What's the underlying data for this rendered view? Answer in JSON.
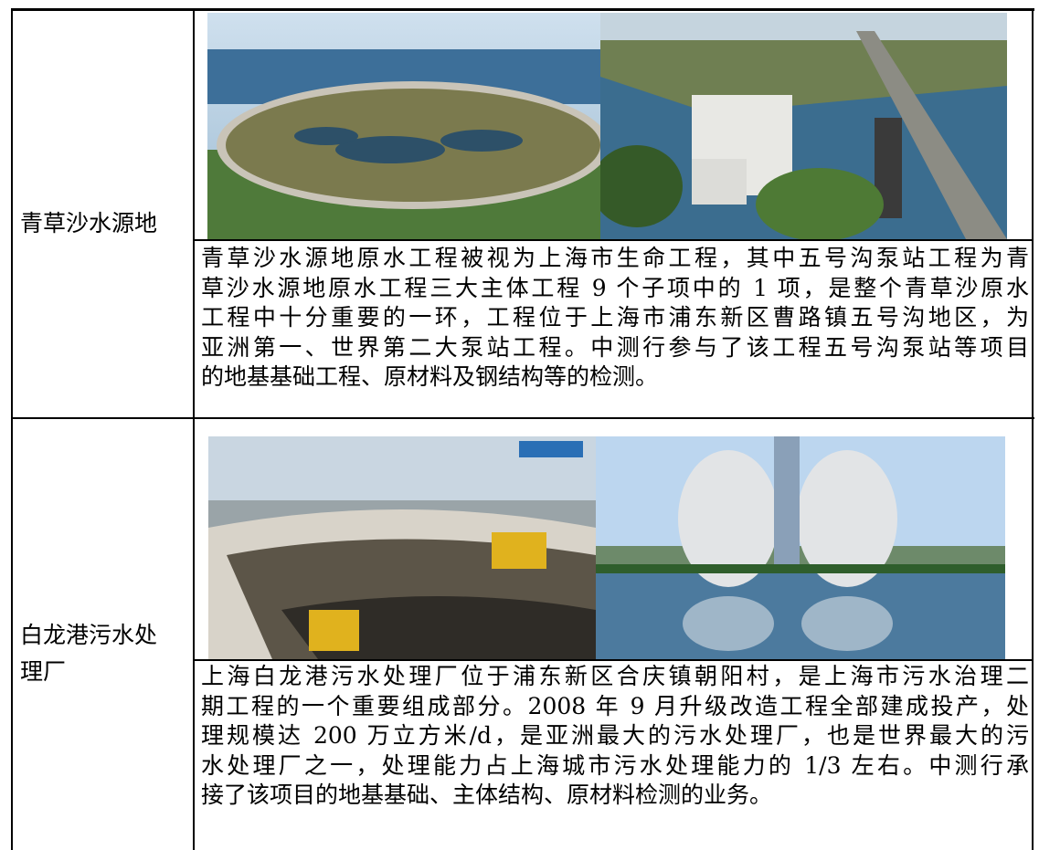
{
  "table": {
    "rows": [
      {
        "label": "青草沙水源地",
        "lines": [
          "青草沙水源地原水工程被视为上海市生命工程，其中五号沟泵站工程为青",
          "草沙水源地原水工程三大主体工程 9 个子项中的 1 项，是整个青草沙原水",
          "工程中十分重要的一环，工程位于上海市浦东新区曹路镇五号沟地区，为",
          "亚洲第一、世界第二大泵站工程。中测行参与了该工程五号沟泵站等项目",
          "的地基基础工程、原材料及钢结构等的检测。"
        ]
      },
      {
        "label": "白龙港污水处理厂",
        "lines": [
          "上海白龙港污水处理厂位于浦东新区合庆镇朝阳村，是上海市污水治理二",
          "期工程的一个重要组成部分。2008 年 9 月升级改造工程全部建成投产，处",
          "理规模达 200 万立方米/d，是亚洲最大的污水处理厂，也是世界最大的污",
          "水处理厂之一，处理能力占上海城市污水处理能力的 1/3 左右。中测行承",
          "接了该项目的地基基础、主体结构、原材料检测的业务。"
        ]
      }
    ]
  }
}
